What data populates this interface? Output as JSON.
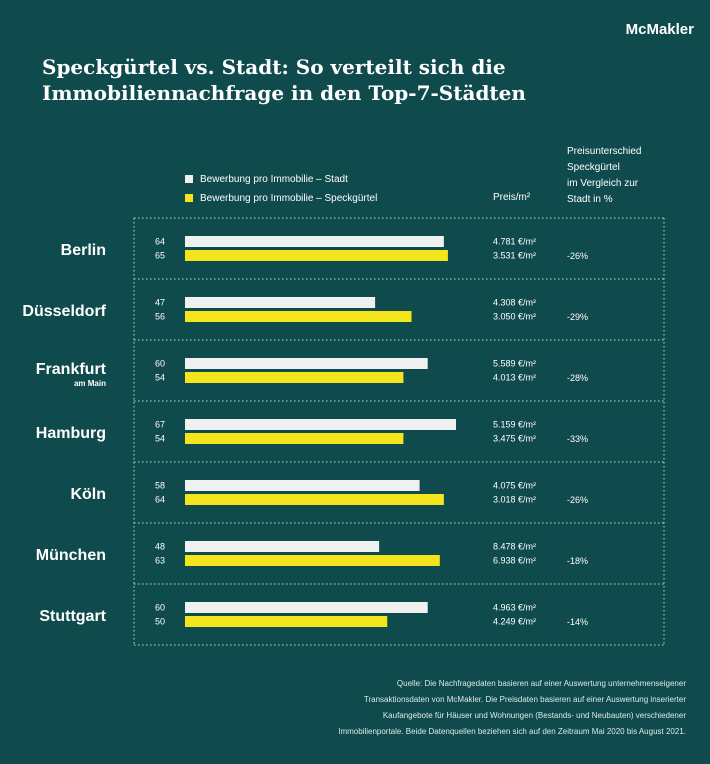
{
  "brand": "McMakler",
  "title_lines": [
    "Speckgürtel vs. Stadt: So verteilt sich die",
    "Immobiliennachfrage in den Top-7-Städten"
  ],
  "headers": {
    "price": "Preis/m²",
    "diff_lines": [
      "Preisunterschied",
      "Speckgürtel",
      "im Vergleich zur",
      "Stadt in %"
    ]
  },
  "source_lines": [
    "Quelle: Die Nachfragedaten basieren auf einer Auswertung unternehmenseigener",
    "Transaktionsdaten von McMakler. Die Preisdaten basieren auf einer Auswertung inserierter",
    "Kaufangebote für Häuser und Wohnungen (Bestands- und Neubauten) verschiedener",
    "Immobilienportale. Beide Datenquellen beziehen sich auf den Zeitraum Mai 2020 bis August 2021."
  ],
  "colors": {
    "background": "#0f4a4c",
    "stadt": "#eef1ef",
    "speckguertel": "#f4e41c"
  },
  "chart_data": {
    "type": "bar",
    "orientation": "horizontal",
    "categories": [
      {
        "name": "Berlin",
        "sub": ""
      },
      {
        "name": "Düsseldorf",
        "sub": ""
      },
      {
        "name": "Frankfurt",
        "sub": "am Main"
      },
      {
        "name": "Hamburg",
        "sub": ""
      },
      {
        "name": "Köln",
        "sub": ""
      },
      {
        "name": "München",
        "sub": ""
      },
      {
        "name": "Stuttgart",
        "sub": ""
      }
    ],
    "series": [
      {
        "name": "Bewerbung pro Immobilie – Stadt",
        "color": "#eef1ef",
        "values": [
          64,
          47,
          60,
          67,
          58,
          48,
          60
        ]
      },
      {
        "name": "Bewerbung pro Immobilie – Speckgürtel",
        "color": "#f4e41c",
        "values": [
          65,
          56,
          54,
          54,
          64,
          63,
          50
        ]
      }
    ],
    "prices_stadt": [
      "4.781 €/m²",
      "4.308 €/m²",
      "5.589 €/m²",
      "5.159 €/m²",
      "4.075 €/m²",
      "8.478 €/m²",
      "4.963 €/m²"
    ],
    "prices_speckguertel": [
      "3.531 €/m²",
      "3.050 €/m²",
      "4.013 €/m²",
      "3.475 €/m²",
      "3.018 €/m²",
      "6.938 €/m²",
      "4.249 €/m²"
    ],
    "price_difference": [
      "-26%",
      "-29%",
      "-28%",
      "-33%",
      "-26%",
      "-18%",
      "-14%"
    ],
    "xlim": [
      0,
      70
    ],
    "grid": false,
    "legend_position": "top"
  }
}
